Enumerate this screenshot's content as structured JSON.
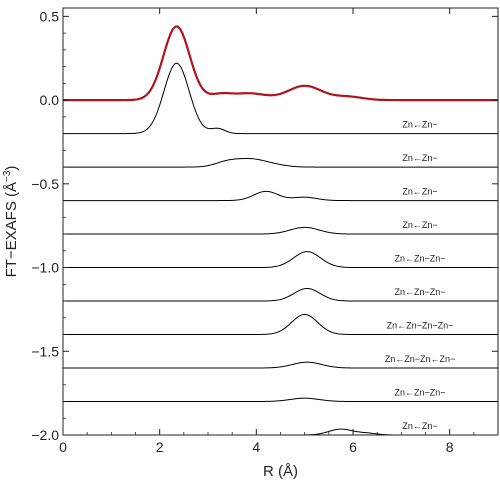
{
  "chart_data": {
    "type": "line",
    "xlabel": "R (Å)",
    "ylabel_prefix": "FT−EXAFS (Å",
    "ylabel_exp": "−3",
    "ylabel_suffix": ")",
    "xlim": [
      0,
      9
    ],
    "ylim": [
      -2.0,
      0.55
    ],
    "x_ticks": [
      0,
      2,
      4,
      6,
      8
    ],
    "y_ticks": [
      0.5,
      0.0,
      -0.5,
      -1.0,
      -1.5,
      -2.0
    ],
    "x_tick_labels": [
      "0",
      "2",
      "4",
      "6",
      "8"
    ],
    "y_tick_labels": [
      "0.5",
      "0.0",
      "−0.5",
      "−1.0",
      "−1.5",
      "−2.0"
    ],
    "colors": {
      "total": "#b0141c",
      "paths": "#000000",
      "axes": "#222222"
    },
    "total": {
      "baseline": 0.0,
      "components": [
        {
          "center": 2.35,
          "height": 0.44,
          "width": 0.27
        },
        {
          "center": 3.25,
          "height": 0.03,
          "width": 0.22
        },
        {
          "center": 3.85,
          "height": 0.04,
          "width": 0.35
        },
        {
          "center": 5.0,
          "height": 0.085,
          "width": 0.35
        },
        {
          "center": 5.9,
          "height": 0.02,
          "width": 0.3
        }
      ]
    },
    "series": [
      {
        "label": "Zn←Zn−",
        "baseline": -0.2,
        "peaks": [
          [
            2.35,
            0.42,
            0.26
          ],
          [
            3.2,
            0.03,
            0.15
          ]
        ]
      },
      {
        "label": "Zn←Zn−",
        "baseline": -0.4,
        "peaks": [
          [
            3.4,
            0.03,
            0.25
          ],
          [
            3.9,
            0.045,
            0.3
          ],
          [
            4.4,
            0.01,
            0.25
          ]
        ]
      },
      {
        "label": "Zn←Zn−",
        "baseline": -0.6,
        "peaks": [
          [
            4.2,
            0.055,
            0.25
          ],
          [
            5.0,
            0.02,
            0.25
          ]
        ]
      },
      {
        "label": "Zn←Zn−",
        "baseline": -0.8,
        "peaks": [
          [
            5.0,
            0.04,
            0.3
          ]
        ]
      },
      {
        "label": "Zn←Zn−Zn−",
        "baseline": -1.0,
        "peaks": [
          [
            5.05,
            0.095,
            0.28
          ]
        ]
      },
      {
        "label": "Zn←Zn−Zn−",
        "baseline": -1.2,
        "peaks": [
          [
            5.05,
            0.075,
            0.27
          ]
        ]
      },
      {
        "label": "Zn←Zn−Zn−Zn−",
        "baseline": -1.4,
        "peaks": [
          [
            5.0,
            0.12,
            0.27
          ]
        ]
      },
      {
        "label": "Zn←Zn−Zn←Zn−",
        "baseline": -1.6,
        "peaks": [
          [
            5.05,
            0.035,
            0.3
          ]
        ]
      },
      {
        "label": "Zn←Zn−Zn−",
        "baseline": -1.8,
        "peaks": [
          [
            5.0,
            0.02,
            0.3
          ]
        ]
      },
      {
        "label": "Zn←Zn−",
        "baseline": -2.0,
        "peaks": [
          [
            5.75,
            0.035,
            0.25
          ],
          [
            6.3,
            0.01,
            0.2
          ]
        ]
      }
    ]
  }
}
